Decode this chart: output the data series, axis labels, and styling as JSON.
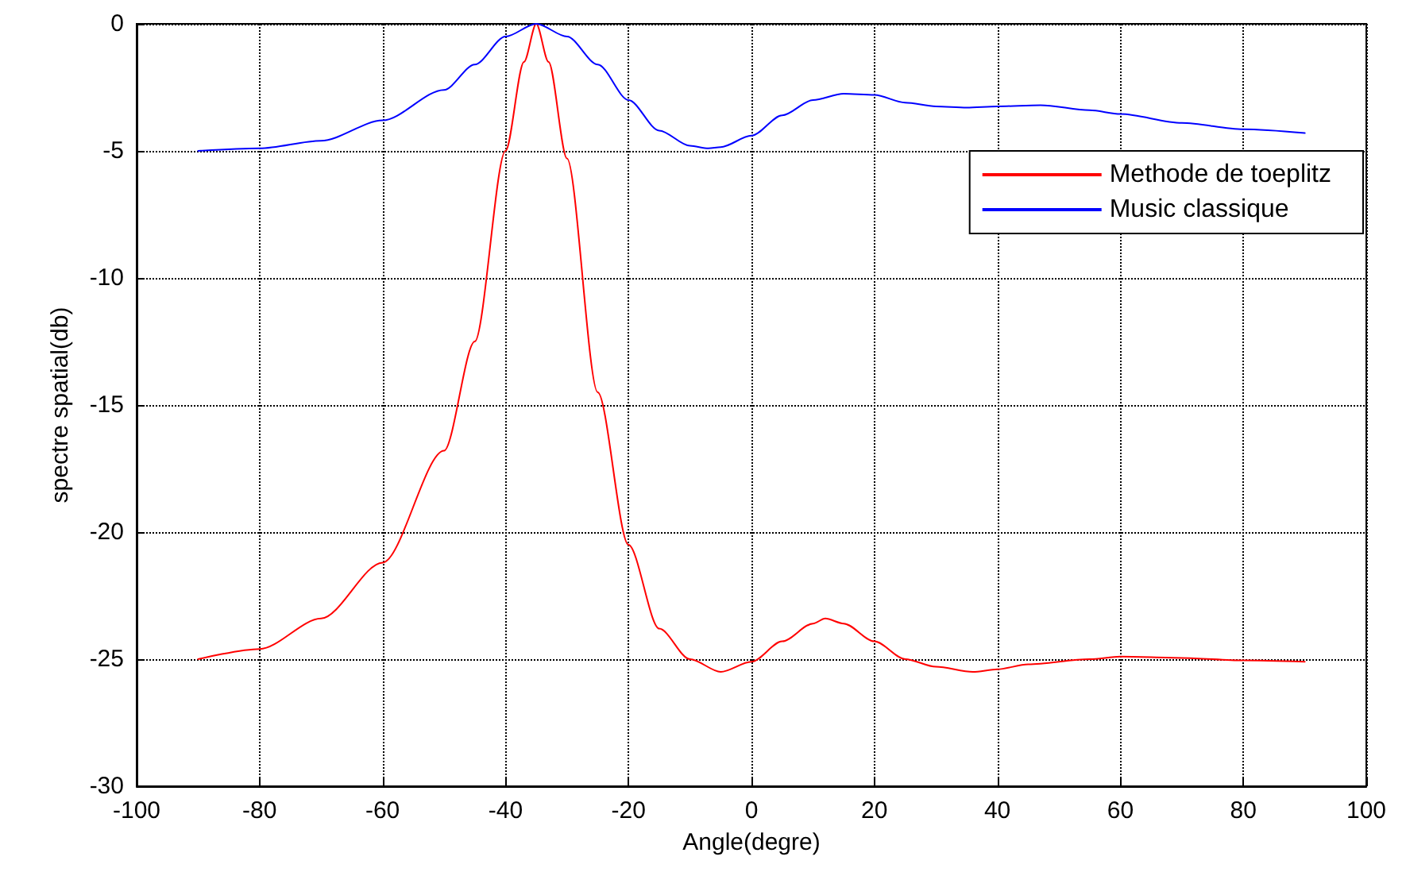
{
  "chart_data": {
    "type": "line",
    "xlabel": "Angle(degre)",
    "ylabel": "spectre spatial(db)",
    "xlim": [
      -100,
      100
    ],
    "xticks": [
      -100,
      -80,
      -60,
      -40,
      -20,
      0,
      20,
      40,
      60,
      80,
      100
    ],
    "ylim": [
      -30,
      0
    ],
    "yticks": [
      -30,
      -25,
      -20,
      -15,
      -10,
      -5,
      0
    ],
    "grid": true,
    "legend": "top right",
    "marker": "none",
    "line_style": "solid",
    "series": [
      {
        "name": "Methode de toeplitz",
        "color": "#ff0000",
        "x": [
          -90,
          -80,
          -70,
          -60,
          -50,
          -45,
          -40,
          -37,
          -35,
          -33,
          -30,
          -25,
          -20,
          -15,
          -10,
          -5,
          0,
          5,
          10,
          12,
          15,
          20,
          25,
          30,
          36,
          40,
          45,
          55,
          60,
          70,
          80,
          90
        ],
        "values": [
          -25,
          -24.6,
          -23.4,
          -21.2,
          -16.8,
          -12.5,
          -5,
          -1.5,
          0,
          -1.5,
          -5.3,
          -14.5,
          -20.5,
          -23.8,
          -25,
          -25.5,
          -25.1,
          -24.3,
          -23.6,
          -23.4,
          -23.6,
          -24.3,
          -25,
          -25.3,
          -25.5,
          -25.4,
          -25.2,
          -25,
          -24.9,
          -24.95,
          -25.05,
          -25.1
        ]
      },
      {
        "name": "Music classique",
        "color": "#0000ff",
        "x": [
          -90,
          -80,
          -70,
          -60,
          -50,
          -45,
          -40,
          -35,
          -30,
          -25,
          -20,
          -15,
          -10,
          -7,
          -5,
          0,
          5,
          10,
          15,
          20,
          25,
          30,
          35,
          40,
          47,
          55,
          60,
          70,
          80,
          90
        ],
        "values": [
          -5,
          -4.9,
          -4.6,
          -3.8,
          -2.6,
          -1.6,
          -0.5,
          0,
          -0.5,
          -1.6,
          -3,
          -4.2,
          -4.8,
          -4.9,
          -4.85,
          -4.4,
          -3.6,
          -3,
          -2.75,
          -2.8,
          -3.1,
          -3.25,
          -3.3,
          -3.25,
          -3.2,
          -3.4,
          -3.55,
          -3.9,
          -4.15,
          -4.3
        ]
      }
    ]
  }
}
